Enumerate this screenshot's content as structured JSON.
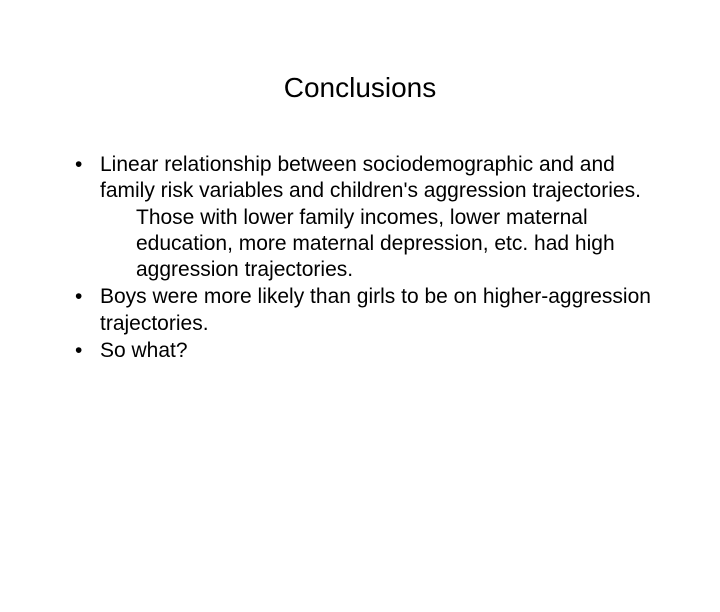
{
  "slide": {
    "title": "Conclusions",
    "bullets": [
      {
        "main": "Linear relationship between sociodemographic and and family risk variables and children's aggression trajectories.",
        "sub": "Those with lower family incomes, lower maternal education, more maternal depression, etc. had high aggression trajectories."
      },
      {
        "main": "Boys were more likely than girls to be on higher-aggression trajectories."
      },
      {
        "main": "So what?"
      }
    ]
  },
  "styling": {
    "background_color": "#ffffff",
    "text_color": "#000000",
    "title_fontsize": 28,
    "body_fontsize": 21,
    "font_family": "Arial"
  }
}
